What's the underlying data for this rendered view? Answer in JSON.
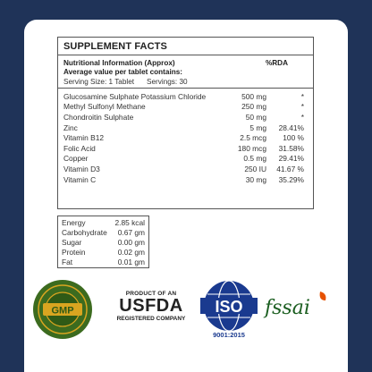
{
  "facts": {
    "title": "SUPPLEMENT FACTS",
    "info_line1": "Nutritional Information (Approx)",
    "info_line2": "Average value per tablet contains:",
    "rda_header": "%RDA",
    "serving_size": "Serving Size: 1 Tablet",
    "servings": "Servings: 30",
    "rows": [
      {
        "name": "Glucosamine Sulphate Potassium Chloride",
        "amount": "500 mg",
        "rda": "*"
      },
      {
        "name": "Methyl Sulfonyl Methane",
        "amount": "250 mg",
        "rda": "*"
      },
      {
        "name": "Chondroitin Sulphate",
        "amount": "50 mg",
        "rda": "*"
      },
      {
        "name": "Zinc",
        "amount": "5 mg",
        "rda": "28.41%"
      },
      {
        "name": "Vitamin B12",
        "amount": "2.5 mcg",
        "rda": "100 %"
      },
      {
        "name": "Folic Acid",
        "amount": "180 mcg",
        "rda": "31.58%"
      },
      {
        "name": "Copper",
        "amount": "0.5 mg",
        "rda": "29.41%"
      },
      {
        "name": "Vitamin D3",
        "amount": "250 IU",
        "rda": "41.67 %"
      },
      {
        "name": "Vitamin C",
        "amount": "30 mg",
        "rda": "35.29%"
      }
    ]
  },
  "energy": [
    {
      "name": "Energy",
      "value": "2.85 kcal"
    },
    {
      "name": "Carbohydrate",
      "value": "0.67 gm"
    },
    {
      "name": "Sugar",
      "value": "0.00 gm"
    },
    {
      "name": "Protein",
      "value": "0.02 gm"
    },
    {
      "name": "Fat",
      "value": "0.01 gm"
    }
  ],
  "logos": {
    "gmp": "GMP",
    "usfda_top": "PRODUCT OF AN",
    "usfda_main": "USFDA",
    "usfda_bottom": "REGISTERED COMPANY",
    "iso": "ISO",
    "iso_number": "9001:2015",
    "fssai": "fssai"
  },
  "colors": {
    "background": "#1f3358",
    "gmp_green": "#3c6b1f",
    "gmp_gold": "#d9a520",
    "iso_blue": "#1a3a8f",
    "fssai_green": "#1b5e20",
    "fssai_orange": "#e65100"
  }
}
